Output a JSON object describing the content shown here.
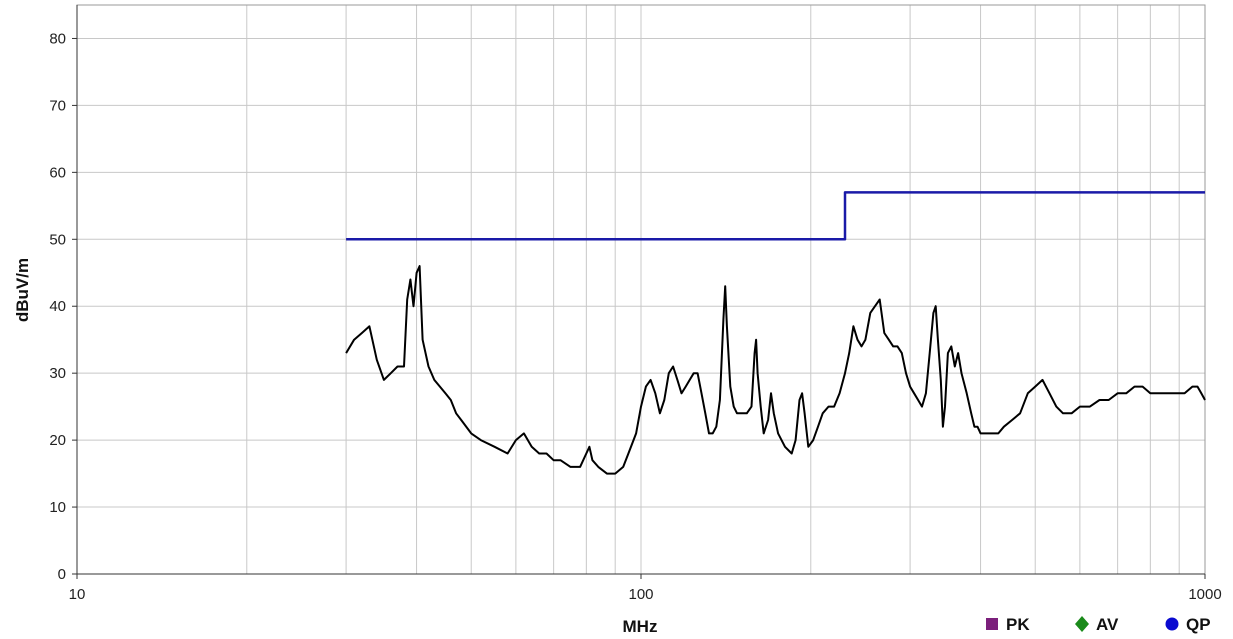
{
  "chart_data": {
    "type": "line",
    "title": "",
    "xlabel": "MHz",
    "ylabel": "dBuV/m",
    "x_scale": "log",
    "xlim": [
      10,
      1000
    ],
    "ylim": [
      0,
      85
    ],
    "x_ticks": [
      10,
      100,
      1000
    ],
    "x_tick_labels": [
      "10",
      "100",
      "1000"
    ],
    "y_ticks": [
      0,
      10,
      20,
      30,
      40,
      50,
      60,
      70,
      80
    ],
    "y_tick_labels": [
      "0",
      "10",
      "20",
      "30",
      "40",
      "50",
      "60",
      "70",
      "80"
    ],
    "grid": true,
    "legend": {
      "placement": "bottom-right",
      "entries": [
        {
          "label": "PK",
          "marker": "square",
          "color": "#7b1f7b"
        },
        {
          "label": "AV",
          "marker": "diamond",
          "color": "#1a8a1a"
        },
        {
          "label": "QP",
          "marker": "circle",
          "color": "#0a0ad0"
        }
      ]
    },
    "series": [
      {
        "color": "#1a1aa8",
        "points": [
          [
            30,
            50
          ],
          [
            230,
            50
          ],
          [
            230,
            57
          ],
          [
            1000,
            57
          ]
        ]
      },
      {
        "color": "#000000",
        "points": [
          [
            30,
            33
          ],
          [
            31,
            35
          ],
          [
            32,
            36
          ],
          [
            33,
            37
          ],
          [
            34,
            32
          ],
          [
            35,
            29
          ],
          [
            36,
            30
          ],
          [
            37,
            31
          ],
          [
            38,
            31
          ],
          [
            38.5,
            41
          ],
          [
            39,
            44
          ],
          [
            39.5,
            40
          ],
          [
            40,
            45
          ],
          [
            40.5,
            46
          ],
          [
            41,
            35
          ],
          [
            42,
            31
          ],
          [
            43,
            29
          ],
          [
            44,
            28
          ],
          [
            45,
            27
          ],
          [
            46,
            26
          ],
          [
            47,
            24
          ],
          [
            48,
            23
          ],
          [
            50,
            21
          ],
          [
            52,
            20
          ],
          [
            55,
            19
          ],
          [
            58,
            18
          ],
          [
            60,
            20
          ],
          [
            62,
            21
          ],
          [
            64,
            19
          ],
          [
            66,
            18
          ],
          [
            68,
            18
          ],
          [
            70,
            17
          ],
          [
            72,
            17
          ],
          [
            75,
            16
          ],
          [
            78,
            16
          ],
          [
            80,
            18
          ],
          [
            81,
            19
          ],
          [
            82,
            17
          ],
          [
            84,
            16
          ],
          [
            87,
            15
          ],
          [
            90,
            15
          ],
          [
            93,
            16
          ],
          [
            95,
            18
          ],
          [
            98,
            21
          ],
          [
            100,
            25
          ],
          [
            102,
            28
          ],
          [
            104,
            29
          ],
          [
            106,
            27
          ],
          [
            108,
            24
          ],
          [
            110,
            26
          ],
          [
            112,
            30
          ],
          [
            114,
            31
          ],
          [
            116,
            29
          ],
          [
            118,
            27
          ],
          [
            120,
            28
          ],
          [
            122,
            29
          ],
          [
            124,
            30
          ],
          [
            126,
            30
          ],
          [
            128,
            27
          ],
          [
            130,
            24
          ],
          [
            132,
            21
          ],
          [
            134,
            21
          ],
          [
            136,
            22
          ],
          [
            138,
            26
          ],
          [
            140,
            38
          ],
          [
            141,
            43
          ],
          [
            142,
            37
          ],
          [
            144,
            28
          ],
          [
            146,
            25
          ],
          [
            148,
            24
          ],
          [
            150,
            24
          ],
          [
            154,
            24
          ],
          [
            157,
            25
          ],
          [
            159,
            33
          ],
          [
            160,
            35
          ],
          [
            161,
            30
          ],
          [
            163,
            25
          ],
          [
            165,
            21
          ],
          [
            168,
            23
          ],
          [
            170,
            27
          ],
          [
            172,
            24
          ],
          [
            175,
            21
          ],
          [
            180,
            19
          ],
          [
            185,
            18
          ],
          [
            188,
            20
          ],
          [
            191,
            26
          ],
          [
            193,
            27
          ],
          [
            195,
            24
          ],
          [
            198,
            19
          ],
          [
            202,
            20
          ],
          [
            206,
            22
          ],
          [
            210,
            24
          ],
          [
            215,
            25
          ],
          [
            220,
            25
          ],
          [
            225,
            27
          ],
          [
            230,
            30
          ],
          [
            234,
            33
          ],
          [
            238,
            37
          ],
          [
            242,
            35
          ],
          [
            246,
            34
          ],
          [
            250,
            35
          ],
          [
            255,
            39
          ],
          [
            260,
            40
          ],
          [
            265,
            41
          ],
          [
            270,
            36
          ],
          [
            275,
            35
          ],
          [
            280,
            34
          ],
          [
            285,
            34
          ],
          [
            290,
            33
          ],
          [
            295,
            30
          ],
          [
            300,
            28
          ],
          [
            305,
            27
          ],
          [
            310,
            26
          ],
          [
            315,
            25
          ],
          [
            320,
            27
          ],
          [
            325,
            33
          ],
          [
            330,
            39
          ],
          [
            333,
            40
          ],
          [
            336,
            35
          ],
          [
            340,
            29
          ],
          [
            343,
            22
          ],
          [
            346,
            25
          ],
          [
            350,
            33
          ],
          [
            355,
            34
          ],
          [
            360,
            31
          ],
          [
            365,
            33
          ],
          [
            370,
            30
          ],
          [
            378,
            27
          ],
          [
            385,
            24
          ],
          [
            390,
            22
          ],
          [
            395,
            22
          ],
          [
            400,
            21
          ],
          [
            410,
            21
          ],
          [
            420,
            21
          ],
          [
            430,
            21
          ],
          [
            440,
            22
          ],
          [
            455,
            23
          ],
          [
            470,
            24
          ],
          [
            485,
            27
          ],
          [
            500,
            28
          ],
          [
            515,
            29
          ],
          [
            530,
            27
          ],
          [
            545,
            25
          ],
          [
            560,
            24
          ],
          [
            580,
            24
          ],
          [
            600,
            25
          ],
          [
            625,
            25
          ],
          [
            650,
            26
          ],
          [
            675,
            26
          ],
          [
            700,
            27
          ],
          [
            725,
            27
          ],
          [
            750,
            28
          ],
          [
            775,
            28
          ],
          [
            800,
            27
          ],
          [
            830,
            27
          ],
          [
            860,
            27
          ],
          [
            890,
            27
          ],
          [
            920,
            27
          ],
          [
            950,
            28
          ],
          [
            970,
            28
          ],
          [
            985,
            27
          ],
          [
            1000,
            26
          ]
        ]
      }
    ]
  }
}
